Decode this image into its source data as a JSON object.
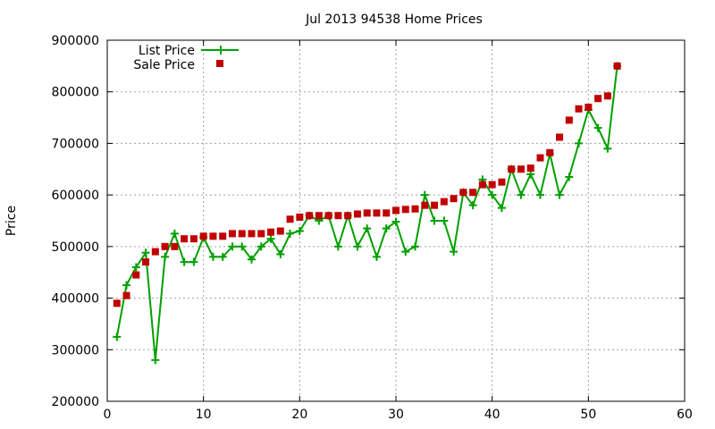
{
  "chart_data": {
    "type": "line",
    "title": "Jul 2013 94538 Home Prices",
    "ylabel": "Price",
    "xlim": [
      0,
      60
    ],
    "ylim": [
      200000,
      900000
    ],
    "x_ticks": [
      0,
      10,
      20,
      30,
      40,
      50,
      60
    ],
    "y_ticks": [
      200000,
      300000,
      400000,
      500000,
      600000,
      700000,
      800000,
      900000
    ],
    "grid": true,
    "legend_position": "top-left",
    "x": [
      1,
      2,
      3,
      4,
      5,
      6,
      7,
      8,
      9,
      10,
      11,
      12,
      13,
      14,
      15,
      16,
      17,
      18,
      19,
      20,
      21,
      22,
      23,
      24,
      25,
      26,
      27,
      28,
      29,
      30,
      31,
      32,
      33,
      34,
      35,
      36,
      37,
      38,
      39,
      40,
      41,
      42,
      43,
      44,
      45,
      46,
      47,
      48,
      49,
      50,
      51,
      52,
      53
    ],
    "series": [
      {
        "name": "List Price",
        "style": "linespoints",
        "color": "#00a000",
        "values": [
          325000,
          425000,
          460000,
          488000,
          280000,
          480000,
          525000,
          470000,
          470000,
          518000,
          480000,
          480000,
          500000,
          500000,
          475000,
          500000,
          515000,
          485000,
          525000,
          530000,
          560000,
          550000,
          560000,
          500000,
          560000,
          500000,
          535000,
          480000,
          535000,
          548000,
          490000,
          500000,
          600000,
          550000,
          550000,
          490000,
          605000,
          580000,
          630000,
          600000,
          575000,
          650000,
          600000,
          640000,
          600000,
          680000,
          600000,
          635000,
          700000,
          765000,
          730000,
          690000,
          850000
        ]
      },
      {
        "name": "Sale Price",
        "style": "points",
        "color": "#c00000",
        "values": [
          390000,
          405000,
          445000,
          470000,
          490000,
          500000,
          500000,
          515000,
          515000,
          520000,
          520000,
          520000,
          525000,
          525000,
          525000,
          525000,
          528000,
          530000,
          553000,
          557000,
          560000,
          560000,
          560000,
          560000,
          560000,
          563000,
          565000,
          565000,
          565000,
          570000,
          572000,
          573000,
          580000,
          580000,
          587000,
          593000,
          605000,
          605000,
          620000,
          620000,
          625000,
          650000,
          650000,
          652000,
          672000,
          682000,
          712000,
          745000,
          767000,
          770000,
          787000,
          792000,
          850000
        ]
      }
    ]
  }
}
